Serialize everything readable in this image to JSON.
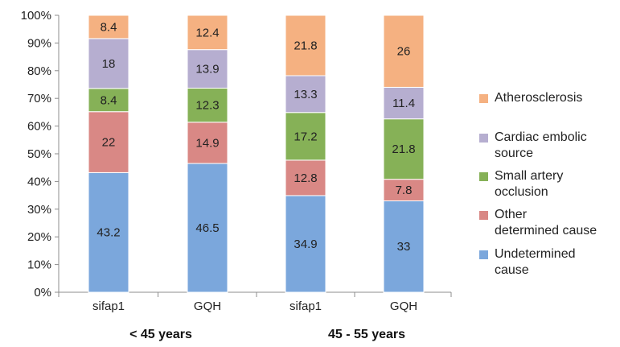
{
  "chart_data": {
    "type": "bar",
    "stacked": true,
    "title": "",
    "xlabel": "",
    "ylabel": "",
    "ylim": [
      0,
      100
    ],
    "y_ticks": [
      "0%",
      "10%",
      "20%",
      "30%",
      "40%",
      "50%",
      "60%",
      "70%",
      "80%",
      "90%",
      "100%"
    ],
    "categories": [
      "sifap1",
      "GQH",
      "sifap1",
      "GQH"
    ],
    "groups": [
      {
        "label": "< 45 years",
        "categories": [
          0,
          1
        ]
      },
      {
        "label": "45 - 55 years",
        "categories": [
          2,
          3
        ]
      }
    ],
    "series": [
      {
        "name": "Undetermined cause",
        "color": "#7ba7dc",
        "values": [
          43.2,
          46.5,
          34.9,
          33
        ]
      },
      {
        "name": "Other determined cause",
        "color": "#d98885",
        "values": [
          22,
          14.9,
          12.8,
          7.8
        ]
      },
      {
        "name": "Small artery occlusion",
        "color": "#86b157",
        "values": [
          8.4,
          12.3,
          17.2,
          21.8
        ]
      },
      {
        "name": "Cardiac embolic source",
        "color": "#b6aed0",
        "values": [
          18,
          13.9,
          13.3,
          11.4
        ]
      },
      {
        "name": "Atherosclerosis",
        "color": "#f5b181",
        "values": [
          8.4,
          12.4,
          21.8,
          26
        ]
      }
    ],
    "legend": {
      "placement": "right",
      "order": [
        "Atherosclerosis",
        "Cardiac embolic source",
        "Small artery occlusion",
        "Other determined cause",
        "Undetermined cause"
      ],
      "display_lines": [
        [
          "Atherosclerosis"
        ],
        [
          "Cardiac embolic",
          "source"
        ],
        [
          "Small artery",
          "occlusion"
        ],
        [
          "Other",
          "determined cause"
        ],
        [
          "Undetermined",
          "cause"
        ]
      ]
    },
    "grid": false
  }
}
